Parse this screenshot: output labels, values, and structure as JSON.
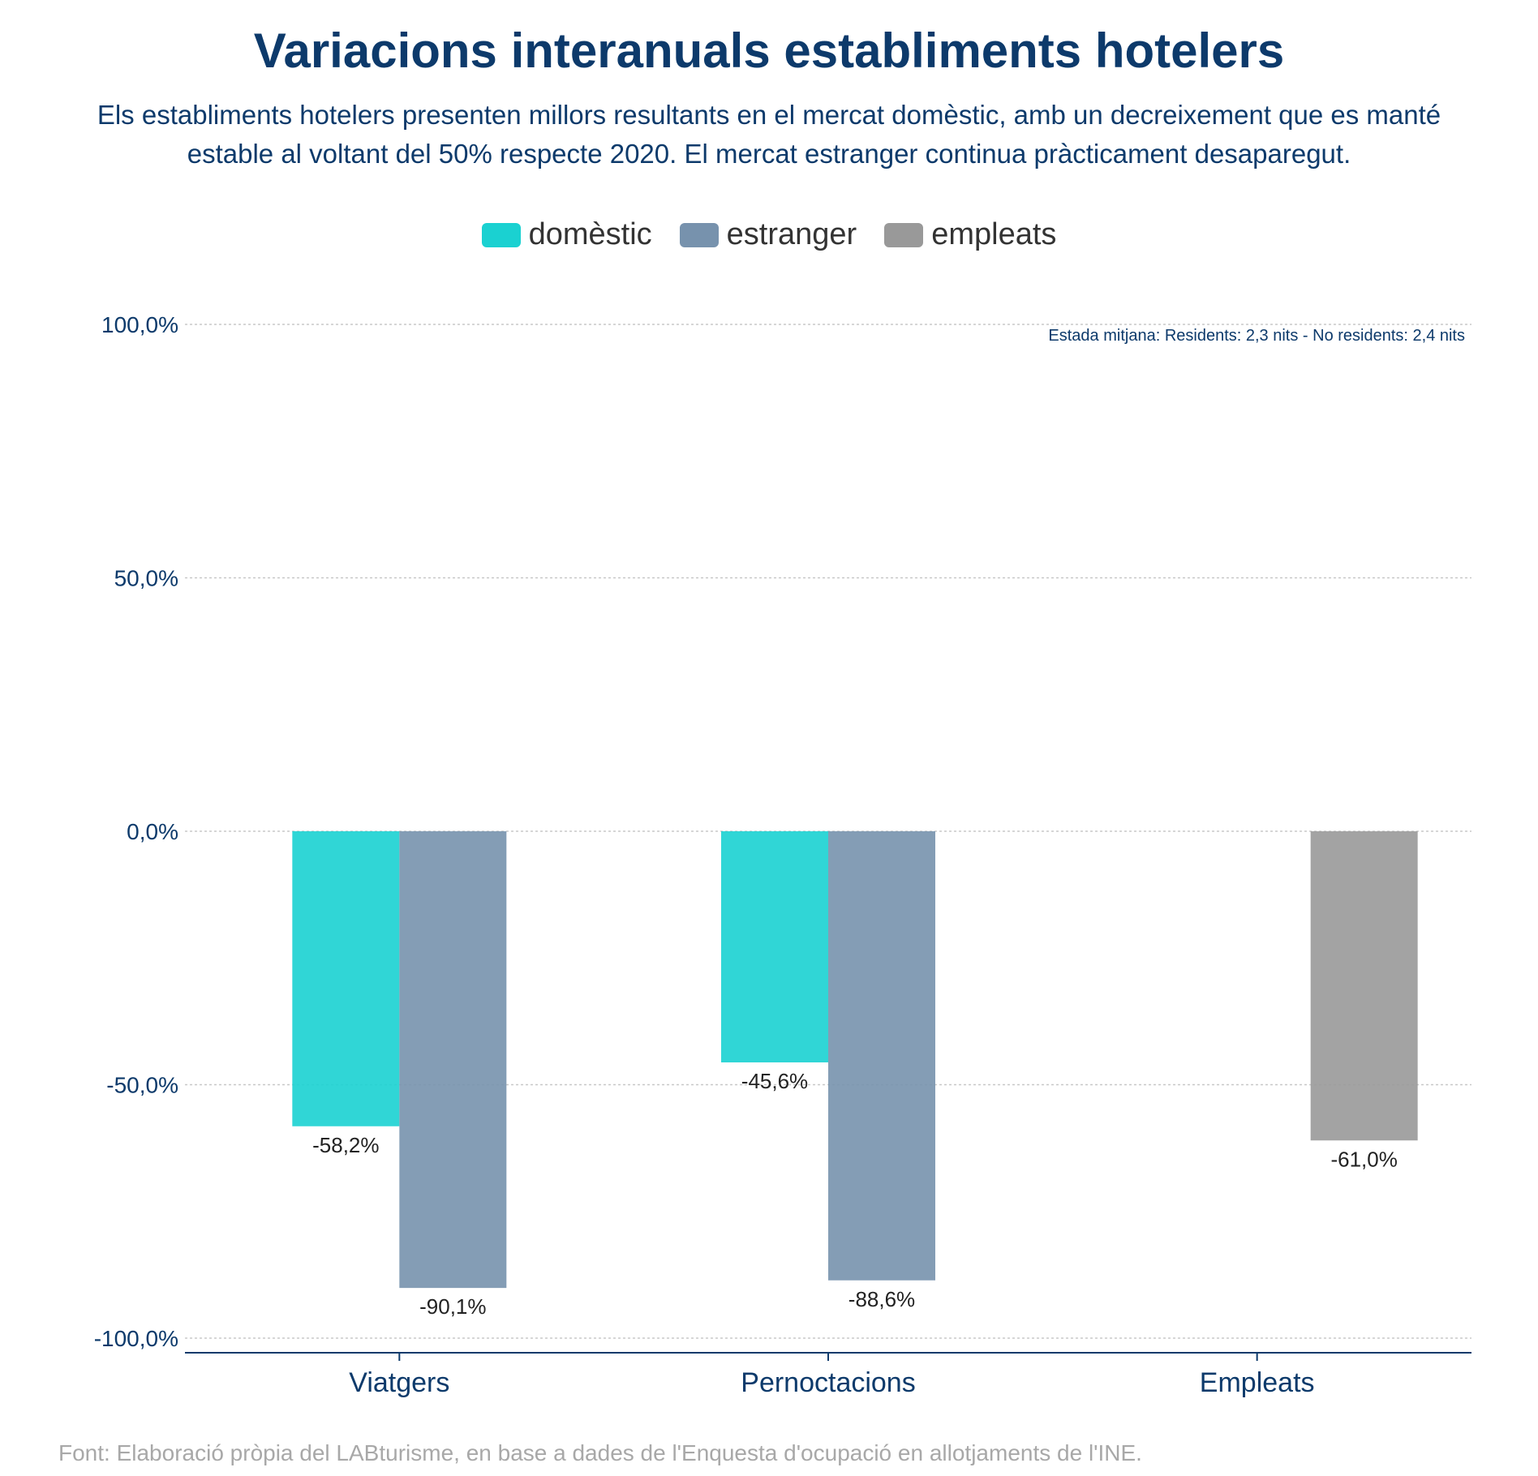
{
  "title": "Variacions interanuals establiments hotelers",
  "subtitle": "Els establiments hotelers presenten millors resultants en el mercat domèstic, amb un decreixement que es manté estable al voltant del 50% respecte 2020. El mercat estranger continua pràcticament desaparegut.",
  "legend": [
    {
      "label": "domèstic",
      "color": "#1ad1d1"
    },
    {
      "label": "estranger",
      "color": "#7792ad"
    },
    {
      "label": "empleats",
      "color": "#999999"
    }
  ],
  "annotation": "Estada mitjana: Residents: 2,3 nits - No residents: 2,4 nits",
  "source": "Font: Elaboració pròpia del LABturisme, en base a dades de l'Enquesta d'ocupació en allotjaments de l'INE.",
  "chart_data": {
    "type": "bar",
    "categories": [
      "Viatgers",
      "Pernoctacions",
      "Empleats"
    ],
    "series": [
      {
        "name": "domèstic",
        "color": "#1ad1d1",
        "values": [
          -58.2,
          -45.6,
          null
        ],
        "labels": [
          "-58,2%",
          "-45,6%",
          ""
        ]
      },
      {
        "name": "estranger",
        "color": "#7792ad",
        "values": [
          -90.1,
          -88.6,
          null
        ],
        "labels": [
          "-90,1%",
          "-88,6%",
          ""
        ]
      },
      {
        "name": "empleats",
        "color": "#999999",
        "values": [
          null,
          null,
          -61.0
        ],
        "labels": [
          "",
          "",
          "-61,0%"
        ]
      }
    ],
    "yticks": [
      100,
      50,
      0,
      -50,
      -100
    ],
    "ytick_labels": [
      "100,0%",
      "50,0%",
      "0,0%",
      "-50,0%",
      "-100,0%"
    ],
    "ylim": [
      -100,
      100
    ],
    "grid": true,
    "legend_position": "top-center"
  }
}
